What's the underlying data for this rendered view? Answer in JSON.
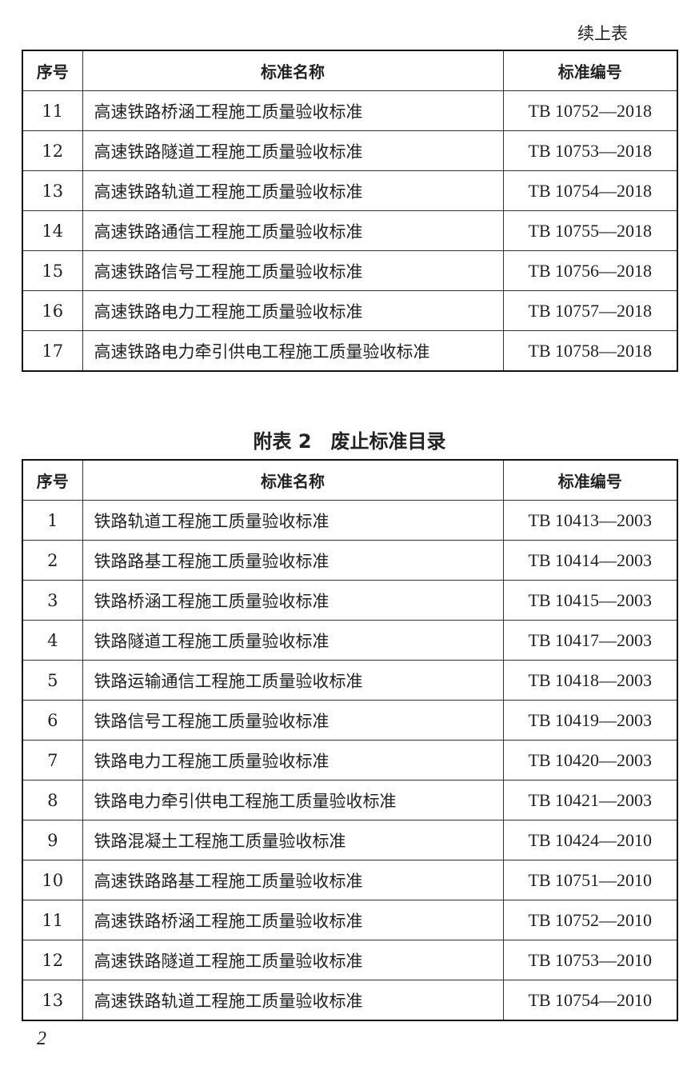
{
  "continued_label": "续上表",
  "headers": {
    "no": "序号",
    "name": "标准名称",
    "code": "标准编号"
  },
  "table1": [
    {
      "no": "11",
      "name": "高速铁路桥涵工程施工质量验收标准",
      "code": "TB 10752—2018"
    },
    {
      "no": "12",
      "name": "高速铁路隧道工程施工质量验收标准",
      "code": "TB 10753—2018"
    },
    {
      "no": "13",
      "name": "高速铁路轨道工程施工质量验收标准",
      "code": "TB 10754—2018"
    },
    {
      "no": "14",
      "name": "高速铁路通信工程施工质量验收标准",
      "code": "TB 10755—2018"
    },
    {
      "no": "15",
      "name": "高速铁路信号工程施工质量验收标准",
      "code": "TB 10756—2018"
    },
    {
      "no": "16",
      "name": "高速铁路电力工程施工质量验收标准",
      "code": "TB 10757—2018"
    },
    {
      "no": "17",
      "name": "高速铁路电力牵引供电工程施工质量验收标准",
      "code": "TB 10758—2018"
    }
  ],
  "table2_title": "附表 2　废止标准目录",
  "table2": [
    {
      "no": "1",
      "name": "铁路轨道工程施工质量验收标准",
      "code": "TB 10413—2003"
    },
    {
      "no": "2",
      "name": "铁路路基工程施工质量验收标准",
      "code": "TB 10414—2003"
    },
    {
      "no": "3",
      "name": "铁路桥涵工程施工质量验收标准",
      "code": "TB 10415—2003"
    },
    {
      "no": "4",
      "name": "铁路隧道工程施工质量验收标准",
      "code": "TB 10417—2003"
    },
    {
      "no": "5",
      "name": "铁路运输通信工程施工质量验收标准",
      "code": "TB 10418—2003"
    },
    {
      "no": "6",
      "name": "铁路信号工程施工质量验收标准",
      "code": "TB 10419—2003"
    },
    {
      "no": "7",
      "name": "铁路电力工程施工质量验收标准",
      "code": "TB 10420—2003"
    },
    {
      "no": "8",
      "name": "铁路电力牵引供电工程施工质量验收标准",
      "code": "TB 10421—2003"
    },
    {
      "no": "9",
      "name": "铁路混凝土工程施工质量验收标准",
      "code": "TB 10424—2010"
    },
    {
      "no": "10",
      "name": "高速铁路路基工程施工质量验收标准",
      "code": "TB 10751—2010"
    },
    {
      "no": "11",
      "name": "高速铁路桥涵工程施工质量验收标准",
      "code": "TB 10752—2010"
    },
    {
      "no": "12",
      "name": "高速铁路隧道工程施工质量验收标准",
      "code": "TB 10753—2010"
    },
    {
      "no": "13",
      "name": "高速铁路轨道工程施工质量验收标准",
      "code": "TB 10754—2010"
    }
  ],
  "page_number": "2"
}
